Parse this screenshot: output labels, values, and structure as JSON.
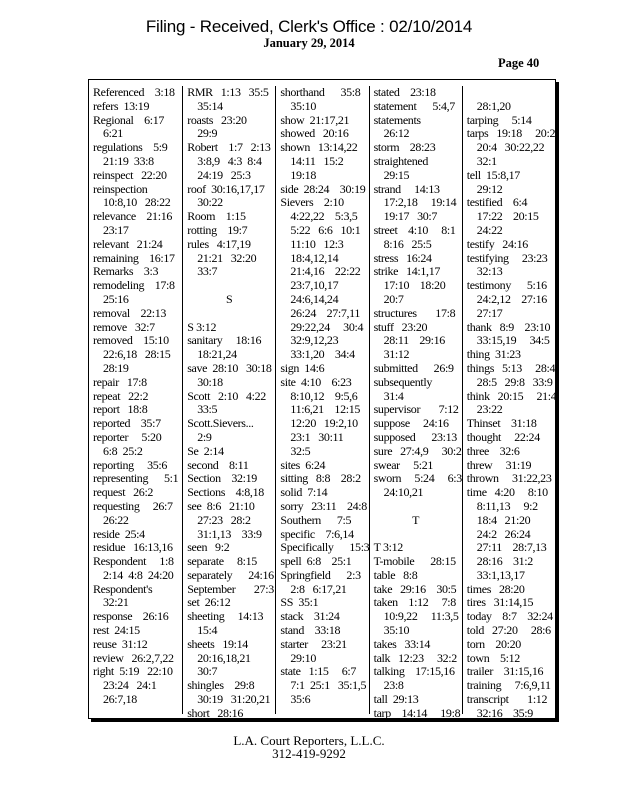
{
  "header": {
    "filing_stamp": "Filing  - Received,  Clerk's  Office  : 02/10/2014",
    "date": "January 29, 2014",
    "page": "Page 40"
  },
  "columns": [
    [
      [
        "Referenced    3:18"
      ],
      [
        "refers  13:19"
      ],
      [
        "Regional    6:17",
        "6:21"
      ],
      [
        "regulations    5:9",
        "21:19  33:8"
      ],
      [
        "reinspect   22:20"
      ],
      [
        "reinspection",
        "10:8,10   28:22"
      ],
      [
        "relevance    21:16",
        "23:17"
      ],
      [
        "relevant   21:24"
      ],
      [
        "remaining    16:17"
      ],
      [
        "Remarks    3:3"
      ],
      [
        "remodeling    17:8",
        "25:16"
      ],
      [
        "removal    22:13"
      ],
      [
        "remove   32:7"
      ],
      [
        "removed    15:10",
        "22:6,18   28:15",
        "28:19"
      ],
      [
        "repair   17:8"
      ],
      [
        "repeat   22:2"
      ],
      [
        "report   18:8"
      ],
      [
        "reported    35:7"
      ],
      [
        "reporter     5:20",
        "6:8  25:2"
      ],
      [
        "reporting     35:6"
      ],
      [
        "representing      5:1"
      ],
      [
        "request   26:2"
      ],
      [
        "requesting     26:7",
        "26:22"
      ],
      [
        "reside  25:4"
      ],
      [
        "residue   16:13,16"
      ],
      [
        "Respondent     1:8",
        "2:14  4:8  24:20"
      ],
      [
        "Respondent's",
        "32:21"
      ],
      [
        "response    26:16"
      ],
      [
        "rest  24:15"
      ],
      [
        "reuse  31:12"
      ],
      [
        "review   26:2,7,22"
      ],
      [
        "right  5:19   22:10",
        "23:24   24:1",
        "26:7,18"
      ]
    ],
    [
      [
        "RMR   1:13   35:5",
        "35:14"
      ],
      [
        "roasts   23:20",
        "29:9"
      ],
      [
        "Robert    1:7   2:13",
        "3:8,9   4:3  8:4",
        "24:19   25:3"
      ],
      [
        "roof  30:16,17,17",
        "30:22"
      ],
      [
        "Room    1:15"
      ],
      [
        "rotting    19:7"
      ],
      [
        "rules   4:17,19",
        "21:21   32:20",
        "33:7"
      ],
      [
        ""
      ],
      {
        "heading": "S"
      },
      [
        ""
      ],
      [
        "S 3:12"
      ],
      [
        "sanitary     18:16",
        "18:21,24"
      ],
      [
        "save  28:10   30:18",
        "30:18"
      ],
      [
        "Scott   2:10   4:22",
        "33:5"
      ],
      [
        "Scott.Sievers...",
        "2:9"
      ],
      [
        "Se  2:14"
      ],
      [
        "second    8:11"
      ],
      [
        "Section    32:19"
      ],
      [
        "Sections    4:8,18"
      ],
      [
        "see  8:6   21:10",
        "27:23   28:2",
        "31:1,13    33:9"
      ],
      [
        "seen   9:2"
      ],
      [
        "separate     8:15"
      ],
      [
        "separately      24:16"
      ],
      [
        "September       27:3"
      ],
      [
        "set  26:12"
      ],
      [
        "sheeting     14:13",
        "15:4"
      ],
      [
        "sheets   19:14",
        "20:16,18,21",
        "30:7"
      ],
      [
        "shingles    29:8",
        "30:19   31:20,21"
      ],
      [
        "short   28:16"
      ]
    ],
    [
      [
        "shorthand      35:8",
        "35:10"
      ],
      [
        "show  21:17,21"
      ],
      [
        "showed   20:16"
      ],
      [
        "shown   13:14,22",
        "14:11   15:2",
        "19:18"
      ],
      [
        "side  28:24    30:19"
      ],
      [
        "Sievers    2:10",
        "4:22,22    5:3,5",
        "5:22   6:6   10:1",
        "11:10   12:3",
        "18:4,12,14",
        "21:4,16    22:22",
        "23:7,10,17",
        "24:6,14,24",
        "26:24    27:7,11",
        "29:22,24     30:4",
        "32:9,12,23",
        "33:1,20    34:4"
      ],
      [
        "sign  14:6"
      ],
      [
        "site  4:10    6:23",
        "8:10,12    9:5,6",
        "11:6,21    12:15",
        "12:20   19:2,10",
        "23:1   30:11",
        "32:5"
      ],
      [
        "sites  6:24"
      ],
      [
        "sitting   8:8    28:2"
      ],
      [
        "solid  7:14"
      ],
      [
        "sorry   23:11    24:8"
      ],
      [
        "Southern      7:5"
      ],
      [
        "specific    7:6,14"
      ],
      [
        "Specifically      15:3"
      ],
      [
        "spell  6:8    25:1"
      ],
      [
        "Springfield      2:3",
        "2:8   6:17,21"
      ],
      [
        "SS  35:1"
      ],
      [
        "stack    31:24"
      ],
      [
        "stand    33:18"
      ],
      [
        "starter     23:21",
        "29:10"
      ],
      [
        "state   1:15     6:7",
        "7:1  25:1   35:1,5",
        "35:6"
      ]
    ],
    [
      [
        "stated    23:18"
      ],
      [
        "statement      5:4,7"
      ],
      [
        "statements",
        "26:12"
      ],
      [
        "storm    28:23"
      ],
      [
        "straightened",
        "29:15"
      ],
      [
        "strand     14:13",
        "17:2,18     19:14",
        "19:17   30:7"
      ],
      [
        "street    4:10     8:1",
        "8:16   25:5"
      ],
      [
        "stress   16:24"
      ],
      [
        "strike   14:1,17",
        "17:10    18:20",
        "20:7"
      ],
      [
        "structures       17:8"
      ],
      [
        "stuff   23:20",
        "28:11    29:16",
        "31:12"
      ],
      [
        "submitted      26:9"
      ],
      [
        "subsequently",
        "31:4"
      ],
      [
        "supervisor       7:12"
      ],
      [
        "suppose     24:16"
      ],
      [
        "supposed      23:13"
      ],
      [
        "sure   27:4,9     30:2"
      ],
      [
        "swear     5:21"
      ],
      [
        "sworn     5:24     6:3",
        "24:10,21"
      ],
      [
        ""
      ],
      {
        "heading": "T"
      },
      [
        ""
      ],
      [
        "T 3:12"
      ],
      [
        "T-mobile      28:15"
      ],
      [
        "table   8:8"
      ],
      [
        "take   29:16    30:5"
      ],
      [
        "taken    1:12     7:8",
        "10:9,22     11:3,5",
        "35:10"
      ],
      [
        "takes   33:14"
      ],
      [
        "talk   12:23     32:2"
      ],
      [
        "talking    17:15,16",
        "23:8"
      ],
      [
        "tall  29:13"
      ],
      [
        "tarp    14:14     19:8"
      ]
    ],
    [
      [
        "",
        "28:1,20"
      ],
      [
        "tarping     5:14"
      ],
      [
        "tarps   19:18     20:2",
        "20:4   30:22,22",
        "32:1"
      ],
      [
        "tell  15:8,17",
        "29:12"
      ],
      [
        "testified    6:4",
        "17:22    20:15",
        "24:22"
      ],
      [
        "testify   24:16"
      ],
      [
        "testifying     23:23",
        "32:13"
      ],
      [
        "testimony      5:16",
        "24:2,12    27:16",
        "27:17"
      ],
      [
        "thank   8:9    23:10",
        "33:15,19     34:5"
      ],
      [
        "thing  31:23"
      ],
      [
        "things   5:13     28:4",
        "28:5   29:8   33:9"
      ],
      [
        "think   20:15     21:4",
        "23:22"
      ],
      [
        "Thinset    31:18"
      ],
      [
        "thought     22:24"
      ],
      [
        "three    32:6"
      ],
      [
        "threw     31:19"
      ],
      [
        "thrown     31:22,23"
      ],
      [
        "time   4:20     8:10",
        "8:11,13     9:2",
        "18:4   21:20",
        "24:2   26:24",
        "27:11    28:7,13",
        "28:16    31:2",
        "33:1,13,17"
      ],
      [
        "times   28:20"
      ],
      [
        "tires   31:14,15"
      ],
      [
        "today    8:7    32:24"
      ],
      [
        "told   27:20     28:6"
      ],
      [
        "torn    20:20"
      ],
      [
        "town    5:12"
      ],
      [
        "trailer    31:15,16"
      ],
      [
        "training     7:6,9,11"
      ],
      [
        "transcript       1:12",
        "32:16    35:9"
      ]
    ]
  ],
  "footer": {
    "company": "L.A. Court Reporters, L.L.C.",
    "phone": "312-419-9292"
  }
}
